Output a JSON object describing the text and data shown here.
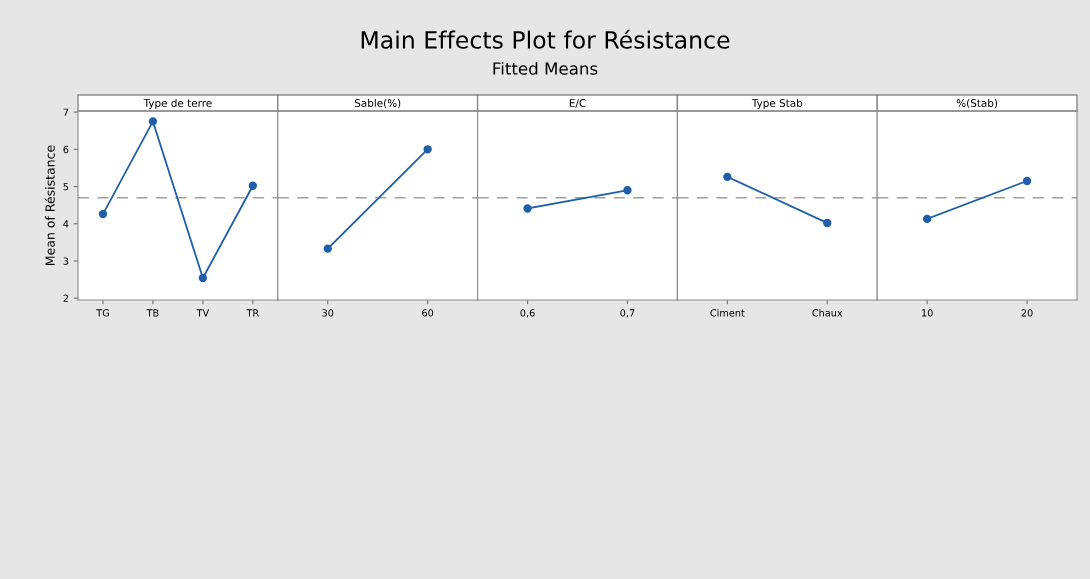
{
  "chart_data": [
    {
      "type": "other",
      "title": "Main Effects Plot for Résistance",
      "subtitle": "Fitted Means"
    },
    {
      "type": "line",
      "xlabel": "Type de terre",
      "ylabel": "Mean of Résistance",
      "categories": [
        "TG",
        "TB",
        "TV",
        "TR"
      ],
      "values": [
        4.26,
        6.75,
        2.54,
        5.02
      ],
      "color": "#1f5fa8",
      "marker": "circle",
      "ylim": [
        1.95,
        7.03
      ],
      "yticks": [
        2,
        3,
        4,
        5,
        6,
        7
      ],
      "ref_lines": [
        {
          "axis": "y",
          "value": 4.7,
          "color": "#a0a0a0",
          "line_style": "dashed"
        }
      ]
    },
    {
      "type": "line",
      "xlabel": "Sable(%)",
      "categories": [
        "30",
        "60"
      ],
      "values": [
        3.33,
        6.0
      ],
      "color": "#1f5fa8",
      "marker": "circle",
      "ylim": [
        1.95,
        7.03
      ],
      "tick_labels": "x",
      "ref_lines": [
        {
          "axis": "y",
          "value": 4.7,
          "color": "#a0a0a0",
          "line_style": "dashed"
        }
      ]
    },
    {
      "type": "line",
      "xlabel": "E/C",
      "categories": [
        "0,6",
        "0,7"
      ],
      "values": [
        4.41,
        4.9
      ],
      "color": "#1f5fa8",
      "marker": "circle",
      "ylim": [
        1.95,
        7.03
      ],
      "tick_labels": "x",
      "ref_lines": [
        {
          "axis": "y",
          "value": 4.7,
          "color": "#a0a0a0",
          "line_style": "dashed"
        }
      ]
    },
    {
      "type": "line",
      "xlabel": "Type Stab",
      "categories": [
        "Ciment",
        "Chaux"
      ],
      "values": [
        5.26,
        4.02
      ],
      "color": "#1f5fa8",
      "marker": "circle",
      "ylim": [
        1.95,
        7.03
      ],
      "tick_labels": "x",
      "ref_lines": [
        {
          "axis": "y",
          "value": 4.7,
          "color": "#a0a0a0",
          "line_style": "dashed"
        }
      ]
    },
    {
      "type": "line",
      "xlabel": "%(Stab)",
      "categories": [
        "10",
        "20"
      ],
      "values": [
        4.13,
        5.15
      ],
      "color": "#1f5fa8",
      "marker": "circle",
      "ylim": [
        1.95,
        7.03
      ],
      "tick_labels": "x",
      "ref_lines": [
        {
          "axis": "y",
          "value": 4.7,
          "color": "#a0a0a0",
          "line_style": "dashed"
        }
      ]
    }
  ]
}
